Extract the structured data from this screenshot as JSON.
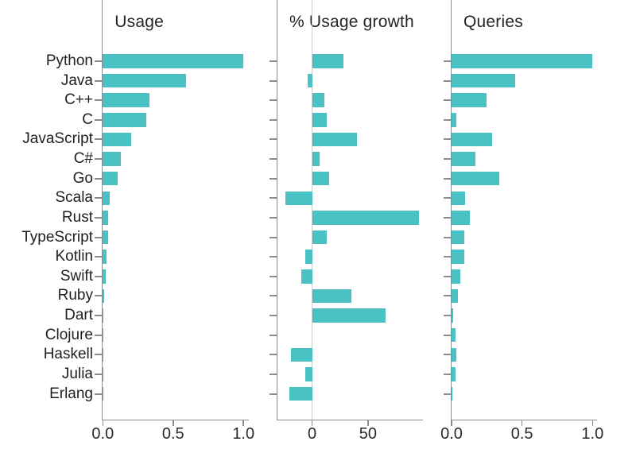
{
  "figure": {
    "background": "#ffffff",
    "bar_color": "#4ac1c4",
    "spine_color": "#8c8c8c",
    "zero_line_color": "#cbcbcb",
    "text_color": "#1f1f1f"
  },
  "chart_data": [
    {
      "type": "bar",
      "orientation": "horizontal",
      "title": "Usage",
      "xlabel": "",
      "ylabel": "",
      "legend": null,
      "grid": false,
      "xlim": [
        0,
        1.04
      ],
      "xticks": [
        {
          "value": 0,
          "label": "0.0"
        },
        {
          "value": 0.5,
          "label": "0.5"
        },
        {
          "value": 1.0,
          "label": "1.0"
        }
      ],
      "categories": [
        "Python",
        "Java",
        "C++",
        "C",
        "JavaScript",
        "C#",
        "Go",
        "Scala",
        "Rust",
        "TypeScript",
        "Kotlin",
        "Swift",
        "Ruby",
        "Dart",
        "Clojure",
        "Haskell",
        "Julia",
        "Erlang"
      ],
      "values": [
        1.0,
        0.59,
        0.33,
        0.31,
        0.2,
        0.127,
        0.107,
        0.049,
        0.038,
        0.04,
        0.028,
        0.019,
        0.012,
        0.006,
        0.002,
        0.002,
        0.002,
        0.001
      ]
    },
    {
      "type": "bar",
      "orientation": "horizontal",
      "title": "% Usage growth",
      "xlabel": "",
      "ylabel": "",
      "legend": null,
      "grid": false,
      "zero_line": true,
      "xlim": [
        -31,
        99
      ],
      "xticks": [
        {
          "value": 0,
          "label": "0"
        },
        {
          "value": 50,
          "label": "50"
        }
      ],
      "categories": [
        "Python",
        "Java",
        "C++",
        "C",
        "JavaScript",
        "C#",
        "Go",
        "Scala",
        "Rust",
        "TypeScript",
        "Kotlin",
        "Swift",
        "Ruby",
        "Dart",
        "Clojure",
        "Haskell",
        "Julia",
        "Erlang"
      ],
      "values": [
        28,
        -4,
        11,
        13,
        40,
        7,
        15,
        -24,
        96,
        13,
        -6,
        -10,
        35,
        66,
        0,
        -19,
        -6,
        -20
      ]
    },
    {
      "type": "bar",
      "orientation": "horizontal",
      "title": "Queries",
      "xlabel": "",
      "ylabel": "",
      "legend": null,
      "grid": false,
      "xlim": [
        0,
        1.032
      ],
      "xticks": [
        {
          "value": 0,
          "label": "0.0"
        },
        {
          "value": 0.5,
          "label": "0.5"
        },
        {
          "value": 1.0,
          "label": "1.0"
        }
      ],
      "categories": [
        "Python",
        "Java",
        "C++",
        "C",
        "JavaScript",
        "C#",
        "Go",
        "Scala",
        "Rust",
        "TypeScript",
        "Kotlin",
        "Swift",
        "Ruby",
        "Dart",
        "Clojure",
        "Haskell",
        "Julia",
        "Erlang"
      ],
      "values": [
        1.0,
        0.45,
        0.25,
        0.032,
        0.29,
        0.17,
        0.34,
        0.096,
        0.128,
        0.089,
        0.092,
        0.062,
        0.043,
        0.013,
        0.03,
        0.032,
        0.026,
        0.005
      ]
    }
  ]
}
